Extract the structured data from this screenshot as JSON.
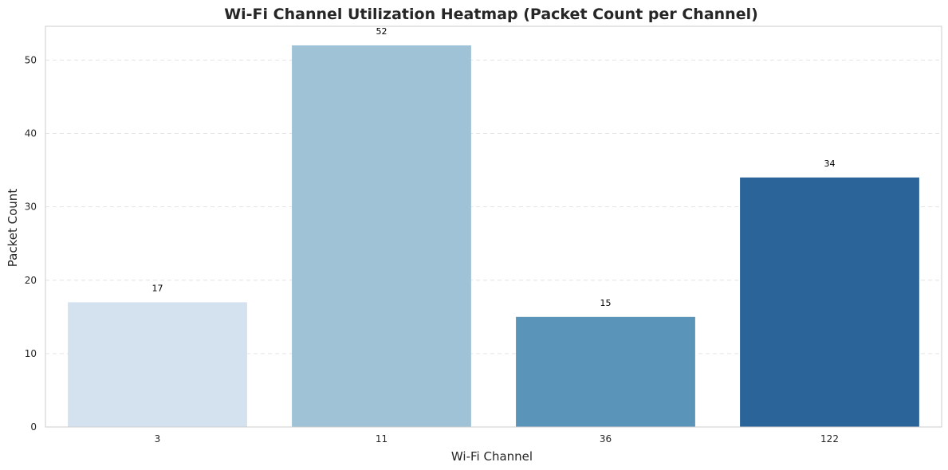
{
  "chart_data": {
    "type": "bar",
    "title": "Wi-Fi Channel Utilization Heatmap (Packet Count per Channel)",
    "xlabel": "Wi-Fi Channel",
    "ylabel": "Packet Count",
    "categories": [
      "3",
      "11",
      "36",
      "122"
    ],
    "values": [
      17,
      52,
      15,
      34
    ],
    "colors": [
      "#d4e2ef",
      "#9fc2d6",
      "#5b94b9",
      "#2b6499"
    ],
    "ylim": [
      0,
      54.6
    ],
    "yticks": [
      0,
      10,
      20,
      30,
      40,
      50
    ],
    "grid": true,
    "legend": "none"
  }
}
